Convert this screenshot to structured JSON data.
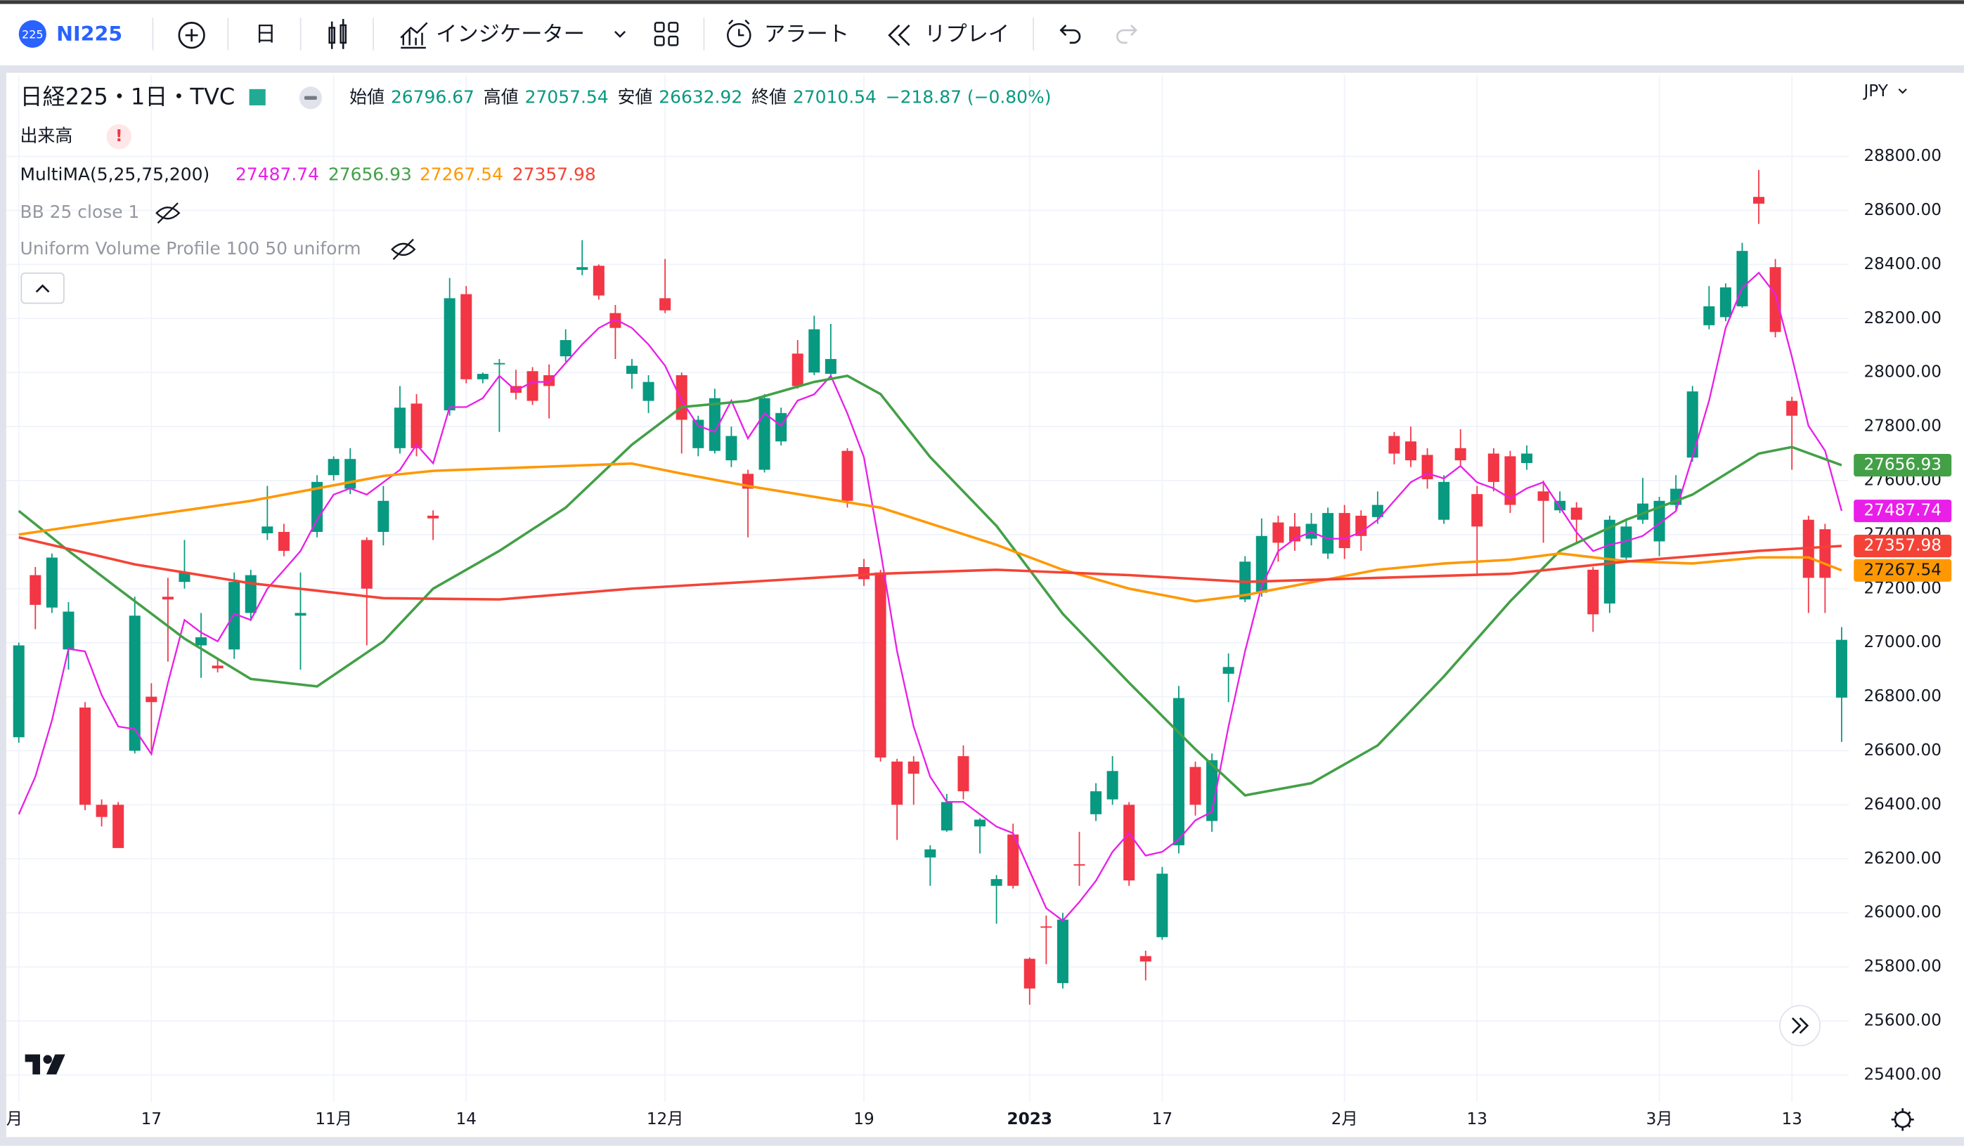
{
  "toolbar": {
    "badge": "225",
    "symbol": "NI225",
    "interval": "日",
    "indicators": "インジケーター",
    "alert": "アラート",
    "replay": "リプレイ"
  },
  "legend": {
    "title": "日経225・1日・TVC",
    "open_label": "始値",
    "high_label": "高値",
    "low_label": "安値",
    "close_label": "終値",
    "change": "−218.87 (−0.80%)",
    "volume": "出来高",
    "multima": "MultiMA(5,25,75,200)",
    "bb": "BB 25 close 1",
    "uvp": "Uniform Volume Profile 100 50 uniform"
  },
  "chart_data": {
    "type": "candlestick",
    "currency": "JPY",
    "categories": [
      "月",
      null,
      null,
      null,
      null,
      null,
      null,
      null,
      "17",
      null,
      null,
      null,
      null,
      null,
      null,
      null,
      null,
      null,
      null,
      "11月",
      null,
      null,
      null,
      null,
      null,
      null,
      null,
      "14",
      null,
      null,
      null,
      null,
      null,
      null,
      null,
      null,
      null,
      null,
      null,
      "12月",
      null,
      null,
      null,
      null,
      null,
      null,
      null,
      null,
      null,
      null,
      null,
      "19",
      null,
      null,
      null,
      null,
      null,
      null,
      null,
      null,
      null,
      "2023",
      null,
      null,
      null,
      null,
      null,
      null,
      null,
      "17",
      null,
      null,
      null,
      null,
      null,
      null,
      null,
      null,
      null,
      null,
      "2月",
      null,
      null,
      null,
      null,
      null,
      null,
      null,
      "13",
      null,
      null,
      null,
      null,
      null,
      null,
      null,
      null,
      null,
      null,
      "3月",
      null,
      null,
      null,
      null,
      null,
      null,
      null,
      "13",
      null,
      null,
      null
    ],
    "open": [
      26650,
      27250,
      27130,
      26975,
      26760,
      26400,
      26400,
      26600,
      26800,
      27170,
      27225,
      26990,
      26915,
      26975,
      27110,
      27405,
      27410,
      27100,
      27410,
      27620,
      27570,
      27380,
      27410,
      27720,
      27885,
      27470,
      27860,
      28290,
      27975,
      28030,
      27950,
      28005,
      27990,
      28060,
      28380,
      28395,
      28220,
      27995,
      27895,
      28275,
      27990,
      27720,
      27710,
      27675,
      27625,
      27640,
      27745,
      28070,
      28000,
      27995,
      27710,
      27280,
      27260,
      26560,
      26560,
      26205,
      26305,
      26580,
      26320,
      26100,
      26290,
      25830,
      25950,
      25740,
      26180,
      26365,
      26420,
      26400,
      25840,
      25910,
      26250,
      26540,
      26340,
      26885,
      27160,
      27185,
      27445,
      27430,
      27385,
      27330,
      27480,
      27470,
      27465,
      27765,
      27745,
      27695,
      27455,
      27720,
      27550,
      27700,
      27690,
      27665,
      27560,
      27490,
      27500,
      27270,
      27145,
      27315,
      27455,
      27375,
      27510,
      27685,
      28175,
      28205,
      28245,
      28650,
      28390,
      27895,
      27455,
      27420,
      26796.67
    ],
    "high": [
      27000,
      27280,
      27330,
      27150,
      26780,
      26420,
      26410,
      27170,
      26850,
      27240,
      27380,
      27110,
      26940,
      27260,
      27270,
      27580,
      27440,
      27260,
      27620,
      27690,
      27720,
      27390,
      27580,
      27950,
      27920,
      27490,
      28350,
      28320,
      28000,
      28050,
      28010,
      28020,
      28030,
      28160,
      28490,
      28400,
      28250,
      28050,
      27990,
      28420,
      28000,
      27840,
      27940,
      27800,
      27640,
      27920,
      27870,
      28120,
      28210,
      28180,
      27720,
      27310,
      27270,
      26570,
      26580,
      26250,
      26440,
      26620,
      26350,
      26140,
      26330,
      25835,
      25990,
      26000,
      26300,
      26480,
      26580,
      26410,
      25860,
      26170,
      26840,
      26560,
      26590,
      26960,
      27320,
      27460,
      27470,
      27480,
      27480,
      27500,
      27510,
      27490,
      27560,
      27780,
      27800,
      27720,
      27620,
      27790,
      27580,
      27720,
      27710,
      27730,
      27600,
      27560,
      27520,
      27280,
      27470,
      27460,
      27610,
      27540,
      27620,
      27950,
      28320,
      28330,
      28480,
      28750,
      28420,
      27910,
      27470,
      27440,
      27057.54
    ],
    "low": [
      26630,
      27050,
      27110,
      26900,
      26380,
      26320,
      26240,
      26590,
      26600,
      26930,
      27200,
      26870,
      26890,
      26940,
      27080,
      27380,
      27320,
      26900,
      27390,
      27600,
      27550,
      26990,
      27360,
      27700,
      27690,
      27380,
      27840,
      27960,
      27960,
      27780,
      27900,
      27880,
      27830,
      28040,
      28360,
      28270,
      28050,
      27940,
      27850,
      28220,
      27700,
      27690,
      27700,
      27650,
      27390,
      27630,
      27730,
      27940,
      27990,
      27990,
      27500,
      27210,
      26560,
      26270,
      26400,
      26100,
      26300,
      26420,
      26220,
      25960,
      26090,
      25660,
      25810,
      25720,
      26100,
      26340,
      26400,
      26100,
      25750,
      25900,
      26220,
      26360,
      26300,
      26780,
      27150,
      27170,
      27300,
      27340,
      27360,
      27310,
      27310,
      27340,
      27440,
      27660,
      27650,
      27570,
      27440,
      27650,
      27250,
      27560,
      27480,
      27640,
      27370,
      27480,
      27370,
      27040,
      27110,
      27300,
      27440,
      27320,
      27490,
      27670,
      28160,
      28190,
      28240,
      28550,
      28130,
      27640,
      27110,
      27110,
      26632.92
    ],
    "close": [
      26990,
      27140,
      27315,
      27115,
      26400,
      26355,
      26240,
      27100,
      26780,
      27160,
      27260,
      27020,
      26905,
      27225,
      27250,
      27430,
      27340,
      27110,
      27595,
      27680,
      27680,
      27200,
      27525,
      27870,
      27720,
      27460,
      28275,
      27975,
      27995,
      28035,
      27925,
      27895,
      27950,
      28120,
      28390,
      28285,
      28165,
      28025,
      27965,
      28230,
      27825,
      27825,
      27905,
      27765,
      27570,
      27905,
      27850,
      27950,
      28160,
      28050,
      27525,
      27235,
      26575,
      26400,
      26515,
      26235,
      26410,
      26450,
      26345,
      26125,
      26100,
      25720,
      25945,
      25975,
      26175,
      26450,
      26525,
      26120,
      25820,
      26145,
      26795,
      26400,
      26565,
      26910,
      27300,
      27395,
      27370,
      27375,
      27440,
      27480,
      27350,
      27395,
      27510,
      27700,
      27675,
      27605,
      27595,
      27675,
      27430,
      27595,
      27510,
      27700,
      27525,
      27525,
      27455,
      27105,
      27455,
      27430,
      27515,
      27525,
      27570,
      27930,
      28245,
      28315,
      28450,
      28625,
      28150,
      27840,
      27240,
      27240,
      27010.54
    ],
    "up_color": "#089981",
    "down_color": "#f23645",
    "series": [
      {
        "color": "#e91ee9",
        "values": [
          26365,
          26504,
          26713,
          26977,
          26968,
          26806,
          26690,
          26680,
          26588,
          26852,
          27084,
          27038,
          27005,
          27107,
          27084,
          27200,
          27269,
          27339,
          27455,
          27548,
          27571,
          27548,
          27594,
          27640,
          27733,
          27664,
          27872,
          27872,
          27905,
          27988,
          27933,
          27965,
          27965,
          28035,
          28104,
          28165,
          28197,
          28165,
          28104,
          28025,
          27896,
          27803,
          27780,
          27896,
          27756,
          27849,
          27803,
          27896,
          27919,
          27988,
          27849,
          27687,
          27339,
          26968,
          26690,
          26504,
          26411,
          26411,
          26365,
          26319,
          26295,
          26156,
          26017,
          25971,
          26040,
          26119,
          26226,
          26295,
          26212,
          26226,
          26272,
          26342,
          26374,
          26690,
          26968,
          27209,
          27339,
          27385,
          27409,
          27385,
          27385,
          27409,
          27455,
          27525,
          27594,
          27627,
          27608,
          27654,
          27594,
          27571,
          27534,
          27571,
          27594,
          27501,
          27409,
          27339,
          27362,
          27376,
          27395,
          27441,
          27487,
          27687,
          27896,
          28165,
          28313,
          28369,
          28290,
          28058,
          27803,
          27710,
          27487.74
        ]
      },
      {
        "color": "#43a047",
        "x": [
          0,
          3,
          6,
          10,
          14,
          18,
          22,
          25,
          29,
          33,
          37,
          40,
          44,
          48,
          50,
          52,
          55,
          59,
          63,
          67,
          71,
          74,
          78,
          82,
          86,
          90,
          93,
          97,
          101,
          105,
          107,
          110
        ],
        "values": [
          27488,
          27340,
          27200,
          27015,
          26866,
          26838,
          27005,
          27200,
          27340,
          27500,
          27733,
          27872,
          27895,
          27965,
          27988,
          27920,
          27687,
          27432,
          27107,
          26852,
          26606,
          26435,
          26480,
          26620,
          26875,
          27153,
          27340,
          27455,
          27548,
          27700,
          27724,
          27656.93
        ]
      },
      {
        "color": "#ff9800",
        "x": [
          0,
          6,
          14,
          22,
          25,
          33,
          37,
          40,
          44,
          52,
          59,
          63,
          67,
          71,
          74,
          78,
          82,
          86,
          90,
          93,
          97,
          101,
          105,
          108,
          110
        ],
        "values": [
          27400,
          27455,
          27525,
          27617,
          27636,
          27654,
          27663,
          27626,
          27580,
          27500,
          27362,
          27270,
          27200,
          27153,
          27176,
          27223,
          27270,
          27293,
          27307,
          27330,
          27302,
          27293,
          27316,
          27316,
          27267.54
        ]
      },
      {
        "color": "#f44336",
        "x": [
          0,
          7,
          14,
          22,
          29,
          37,
          44,
          52,
          59,
          67,
          74,
          82,
          90,
          97,
          105,
          110
        ],
        "values": [
          27390,
          27290,
          27220,
          27165,
          27160,
          27200,
          27225,
          27255,
          27270,
          27250,
          27225,
          27240,
          27255,
          27300,
          27340,
          27357.98
        ]
      }
    ],
    "ylim": [
      25300,
      29100
    ],
    "yticks": [
      {
        "value": 25400,
        "label": "25400.00"
      },
      {
        "value": 25600,
        "label": "25600.00"
      },
      {
        "value": 25800,
        "label": "25800.00"
      },
      {
        "value": 26000,
        "label": "26000.00"
      },
      {
        "value": 26200,
        "label": "26200.00"
      },
      {
        "value": 26400,
        "label": "26400.00"
      },
      {
        "value": 26600,
        "label": "26600.00"
      },
      {
        "value": 26800,
        "label": "26800.00"
      },
      {
        "value": 27000,
        "label": "27000.00"
      },
      {
        "value": 27200,
        "label": "27200.00"
      },
      {
        "value": 27400,
        "label": "27400.00"
      },
      {
        "value": 27600,
        "label": "27600.00"
      },
      {
        "value": 27800,
        "label": "27800.00"
      },
      {
        "value": 28000,
        "label": "28000.00"
      },
      {
        "value": 28200,
        "label": "28200.00"
      },
      {
        "value": 28400,
        "label": "28400.00"
      },
      {
        "value": 28600,
        "label": "28600.00"
      },
      {
        "value": 28800,
        "label": "28800.00"
      }
    ],
    "grid": true
  }
}
